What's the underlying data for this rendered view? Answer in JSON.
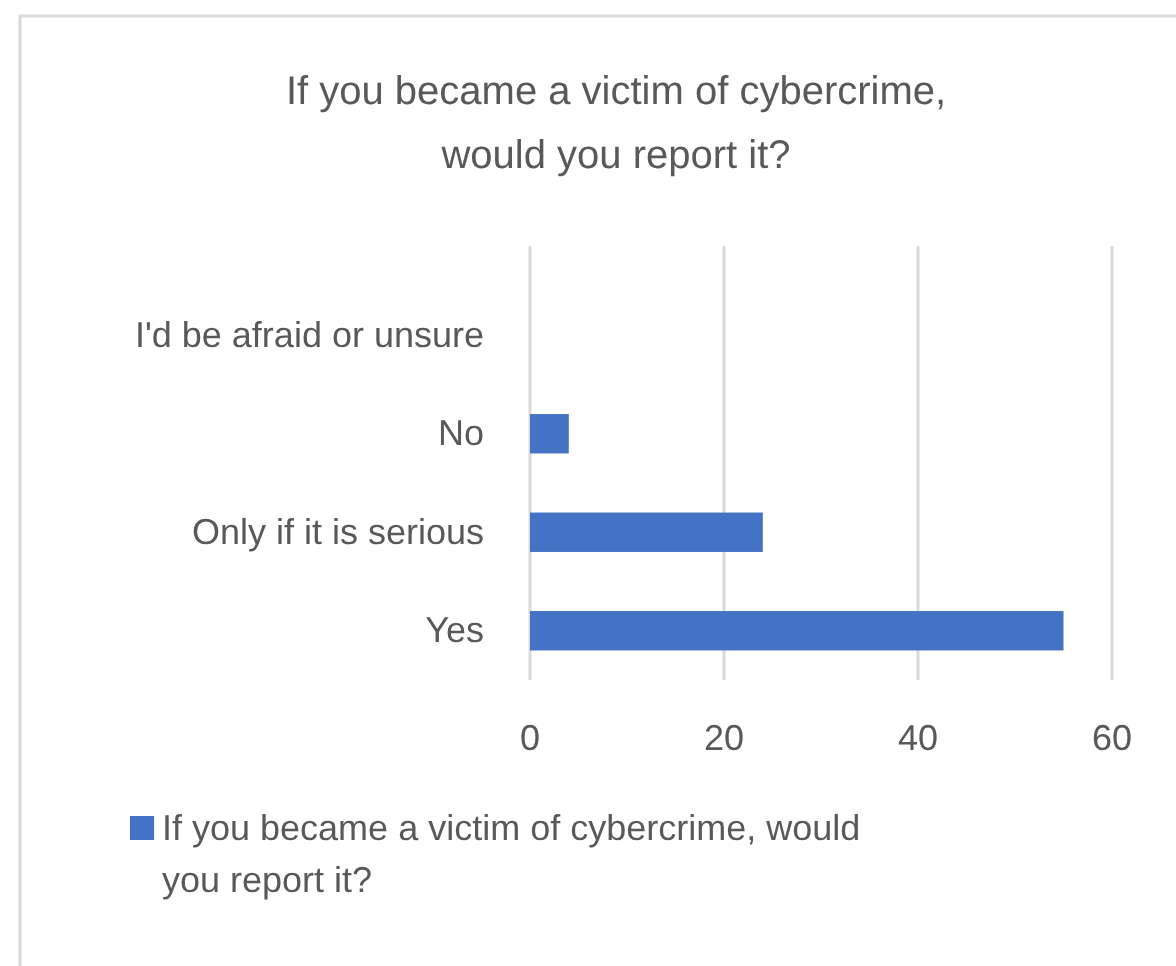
{
  "chart_data": {
    "type": "bar",
    "orientation": "horizontal",
    "title": "If you became a victim of cybercrime,\nwould you report it?",
    "categories": [
      "I'd be afraid or unsure",
      "No",
      "Only if it is serious",
      "Yes"
    ],
    "series": [
      {
        "name": "If you became a victim of cybercrime, would you report it?",
        "color": "#4472c4",
        "values": [
          0,
          4,
          24,
          55
        ]
      }
    ],
    "xlim": [
      0,
      60
    ],
    "xticks": [
      0,
      20,
      40,
      60
    ],
    "grid": "x",
    "legend": "bottom"
  }
}
